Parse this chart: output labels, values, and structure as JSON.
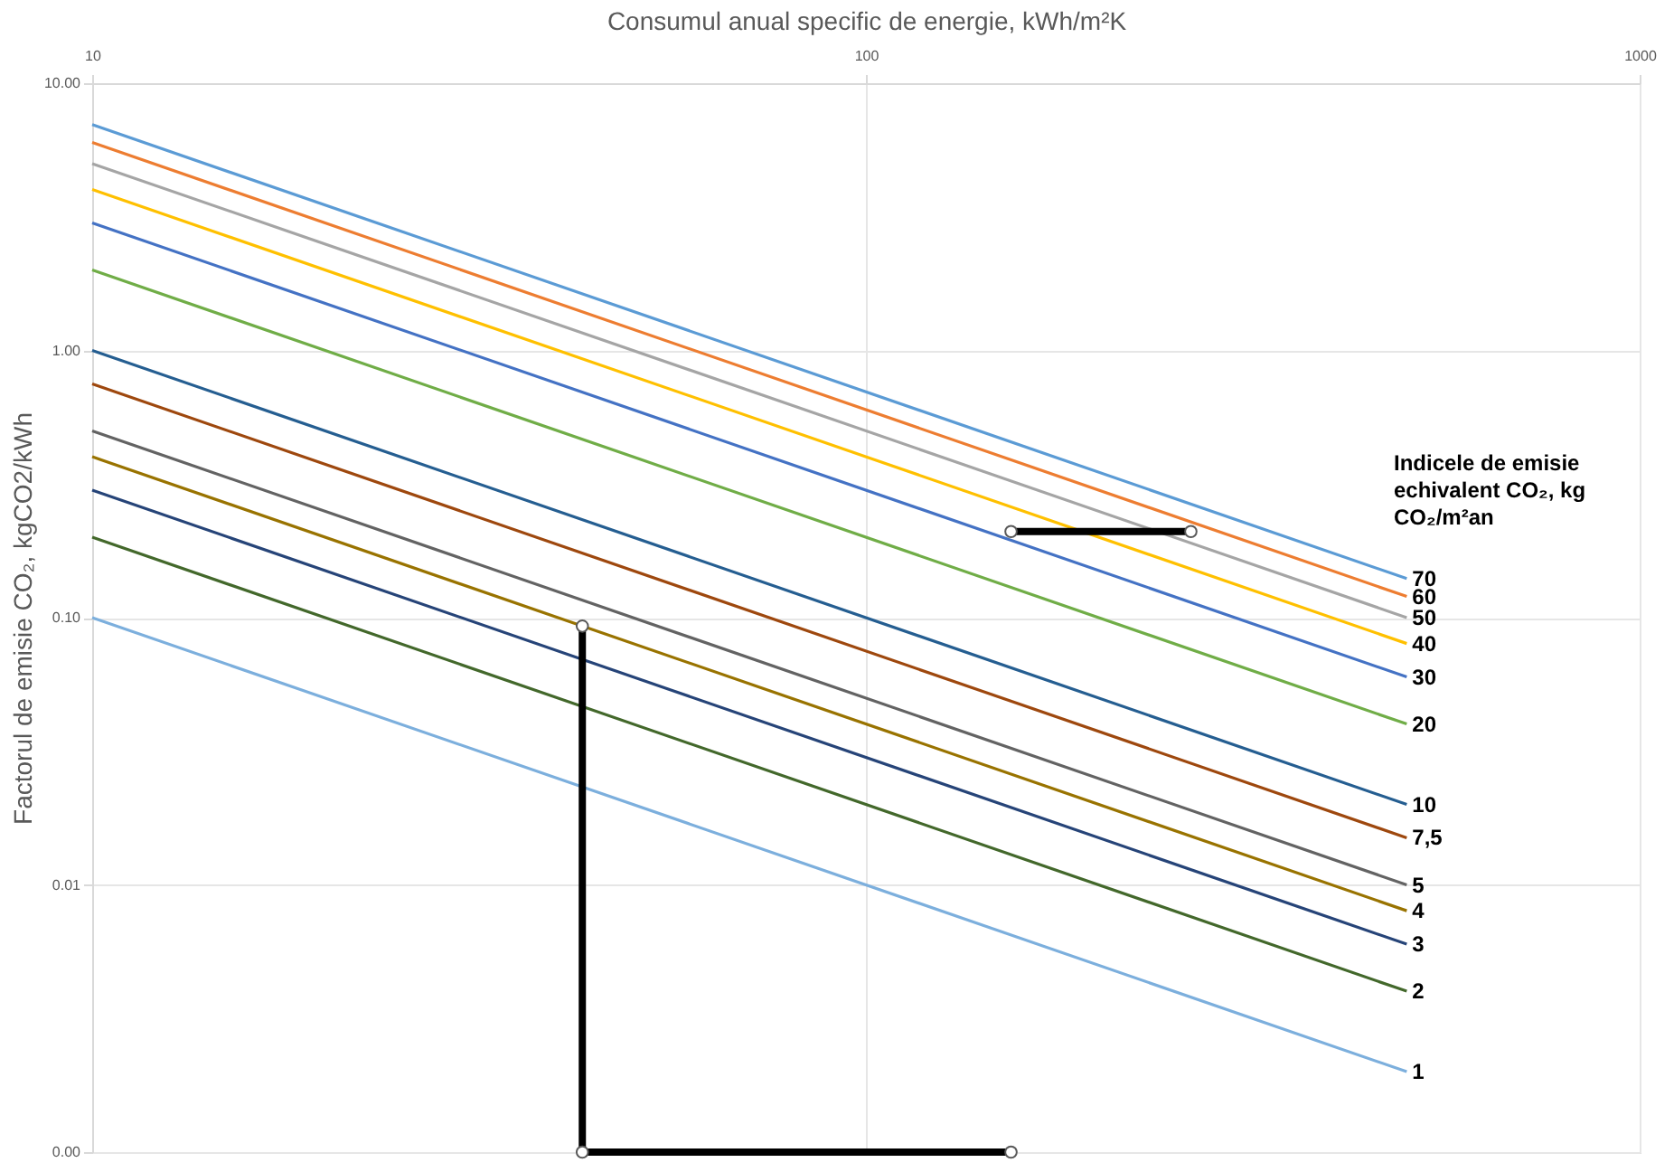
{
  "chart_data": {
    "type": "line",
    "xlabel": "Consumul anual specific de energie, kWh/m²K",
    "ylabel": "Factorul de emisie  CO₂, kgCO2/kWh",
    "legend_title": "Indicele de emisie echivalent CO₂, kg CO₂/m²an",
    "log": "xy",
    "grid": true,
    "xlim": [
      10,
      1000
    ],
    "xticks": [
      10,
      100,
      1000
    ],
    "ylim": [
      0.001,
      10
    ],
    "yticks": [
      {
        "value": 10,
        "label": "10.00"
      },
      {
        "value": 1,
        "label": "1.00"
      },
      {
        "value": 0.1,
        "label": "0.10"
      },
      {
        "value": 0.01,
        "label": "0.01"
      },
      {
        "value": 0.001,
        "label": "0.00"
      }
    ],
    "series": [
      {
        "name": "70",
        "color": "#5b9bd5",
        "x": [
          10,
          500
        ],
        "values": [
          7,
          0.14
        ]
      },
      {
        "name": "60",
        "color": "#ed7d31",
        "x": [
          10,
          500
        ],
        "values": [
          6,
          0.12
        ]
      },
      {
        "name": "50",
        "color": "#a5a5a5",
        "x": [
          10,
          500
        ],
        "values": [
          5,
          0.1
        ]
      },
      {
        "name": "40",
        "color": "#ffc000",
        "x": [
          10,
          500
        ],
        "values": [
          4,
          0.08
        ]
      },
      {
        "name": "30",
        "color": "#4472c4",
        "x": [
          10,
          500
        ],
        "values": [
          3,
          0.06
        ]
      },
      {
        "name": "20",
        "color": "#70ad47",
        "x": [
          10,
          500
        ],
        "values": [
          2,
          0.04
        ]
      },
      {
        "name": "10",
        "color": "#255e91",
        "x": [
          10,
          500
        ],
        "values": [
          1,
          0.02
        ]
      },
      {
        "name": "7,5",
        "color": "#9e480e",
        "x": [
          10,
          500
        ],
        "values": [
          0.75,
          0.015
        ]
      },
      {
        "name": "5",
        "color": "#636363",
        "x": [
          10,
          500
        ],
        "values": [
          0.5,
          0.01
        ]
      },
      {
        "name": "4",
        "color": "#997300",
        "x": [
          10,
          500
        ],
        "values": [
          0.4,
          0.008
        ]
      },
      {
        "name": "3",
        "color": "#264478",
        "x": [
          10,
          500
        ],
        "values": [
          0.3,
          0.006
        ]
      },
      {
        "name": "2",
        "color": "#43682b",
        "x": [
          10,
          500
        ],
        "values": [
          0.2,
          0.004
        ]
      },
      {
        "name": "1",
        "color": "#7cafdd",
        "x": [
          10,
          500
        ],
        "values": [
          0.1,
          0.002
        ]
      },
      {
        "color": "#000000",
        "marker": "circle",
        "x": [
          43,
          43,
          154
        ],
        "values": [
          0.093,
          0.001,
          0.001
        ]
      },
      {
        "color": "#000000",
        "marker": "circle",
        "x": [
          154,
          263
        ],
        "values": [
          0.21,
          0.21
        ]
      }
    ]
  }
}
